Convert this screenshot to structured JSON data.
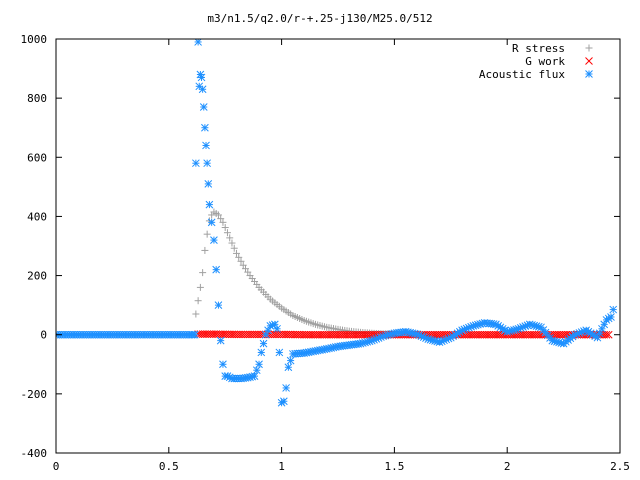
{
  "chart_data": {
    "type": "scatter",
    "title": "m3/n1.5/q2.0/r-+.25-j130/M25.0/512",
    "xlabel": "",
    "ylabel": "",
    "xlim": [
      0,
      2.5
    ],
    "ylim": [
      -400,
      1000
    ],
    "xticks": [
      "0",
      "0.5",
      "1",
      "1.5",
      "2",
      "2.5"
    ],
    "yticks": [
      "-400",
      "-200",
      "0",
      "200",
      "400",
      "600",
      "800",
      "1000"
    ],
    "grid": false,
    "legend_position": "top-right",
    "series": [
      {
        "name": "R stress",
        "marker": "plus",
        "color": "#a0a0a0",
        "x": [
          0.62,
          0.63,
          0.64,
          0.65,
          0.66,
          0.67,
          0.68,
          0.69,
          0.7,
          0.72,
          0.74,
          0.76,
          0.78,
          0.8,
          0.83,
          0.86,
          0.9,
          0.95,
          1.0,
          1.05,
          1.1,
          1.15,
          1.2,
          1.25,
          1.3,
          1.35,
          1.4,
          1.45,
          1.5
        ],
        "y": [
          70,
          115,
          160,
          210,
          285,
          340,
          385,
          405,
          415,
          405,
          380,
          345,
          310,
          275,
          235,
          200,
          160,
          120,
          90,
          65,
          48,
          35,
          25,
          18,
          12,
          8,
          5,
          3,
          2
        ]
      },
      {
        "name": "G work",
        "marker": "cross",
        "color": "#ff0000",
        "x": [
          0.63,
          0.7,
          0.8,
          0.9,
          1.0,
          1.1,
          1.2,
          1.3,
          1.4,
          1.5,
          1.6,
          1.7,
          1.8,
          1.9,
          2.0,
          2.1,
          2.2,
          2.3,
          2.4,
          2.45
        ],
        "y": [
          2,
          2,
          1,
          1,
          1,
          0,
          0,
          0,
          0,
          0,
          0,
          0,
          0,
          0,
          0,
          0,
          0,
          0,
          0,
          0
        ]
      },
      {
        "name": "Acoustic flux",
        "marker": "star",
        "color": "#1e90ff",
        "x": [
          0.0,
          0.1,
          0.2,
          0.3,
          0.4,
          0.5,
          0.6,
          0.615,
          0.62,
          0.63,
          0.635,
          0.64,
          0.645,
          0.65,
          0.655,
          0.66,
          0.665,
          0.67,
          0.675,
          0.68,
          0.69,
          0.7,
          0.71,
          0.72,
          0.73,
          0.74,
          0.75,
          0.76,
          0.78,
          0.8,
          0.82,
          0.85,
          0.88,
          0.9,
          0.91,
          0.93,
          0.95,
          0.97,
          0.98,
          0.99,
          1.0,
          1.01,
          1.02,
          1.03,
          1.05,
          1.1,
          1.15,
          1.2,
          1.25,
          1.3,
          1.35,
          1.4,
          1.45,
          1.5,
          1.55,
          1.6,
          1.65,
          1.7,
          1.75,
          1.8,
          1.85,
          1.9,
          1.95,
          2.0,
          2.05,
          2.1,
          2.15,
          2.2,
          2.25,
          2.3,
          2.35,
          2.4,
          2.42,
          2.44,
          2.46,
          2.47
        ],
        "y": [
          0,
          0,
          0,
          0,
          0,
          0,
          0,
          0,
          580,
          990,
          840,
          880,
          870,
          830,
          770,
          700,
          640,
          580,
          510,
          440,
          380,
          320,
          220,
          100,
          -20,
          -100,
          -140,
          -140,
          -148,
          -148,
          -148,
          -145,
          -140,
          -100,
          -60,
          0,
          30,
          35,
          20,
          -60,
          -230,
          -225,
          -180,
          -110,
          -65,
          -62,
          -55,
          -48,
          -40,
          -35,
          -30,
          -20,
          -5,
          5,
          10,
          2,
          -15,
          -25,
          -10,
          15,
          30,
          40,
          35,
          10,
          20,
          35,
          25,
          -20,
          -30,
          0,
          15,
          -10,
          20,
          50,
          60,
          85
        ]
      }
    ]
  }
}
